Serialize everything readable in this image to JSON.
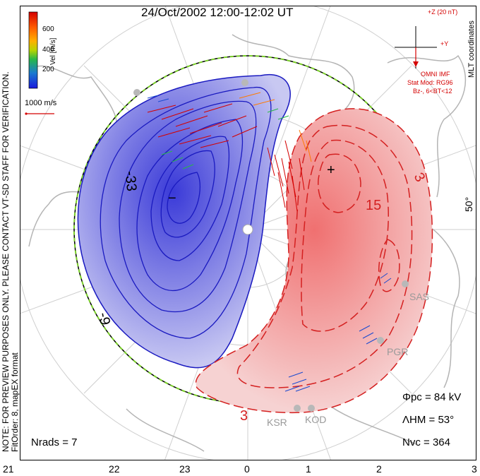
{
  "title": "24/Oct/2002 12:00-12:02 UT",
  "note_lines": [
    "NOTE: FOR PREVIEW PURPOSES ONLY. PLEASE CONTACT VT-SD STAFF FOR VERIFICATION.",
    "FitOrder: 8, mapEX format"
  ],
  "mlt_coordinates_label": "MLT coordinates",
  "latitude_label": "50°",
  "mlt_ticks": [
    "21",
    "22",
    "23",
    "0",
    "1",
    "2",
    "3"
  ],
  "velocity_colorbar": {
    "unit_label": "Vel [m/s]",
    "ticks": [
      "600",
      "400",
      "200"
    ],
    "colors": [
      "#d40000",
      "#ff5a00",
      "#ffb000",
      "#b8d400",
      "#28b848",
      "#1a7ad0",
      "#1a1adc"
    ]
  },
  "vector_scale_label": "1000 m/s",
  "imf": {
    "z_label": "+Z (20 nT)",
    "y_label": "+Y",
    "source_label": "OMNI IMF",
    "model_label": "Stat Mod: RG96",
    "condition_label": "Bz-, 6<BT<12",
    "color": "#d40000"
  },
  "contour_labels": {
    "negative": [
      "-33",
      "-9"
    ],
    "positive": [
      "3",
      "15",
      "3"
    ]
  },
  "markers": {
    "min": "−",
    "max": "+"
  },
  "radars": [
    "SAS",
    "PGR",
    "KSR",
    "KOD"
  ],
  "stats": {
    "phi_pc_label": "Φpc",
    "phi_pc_value": "= 84 kV",
    "lambda_hm_label": "ΛHM",
    "lambda_hm_value": "= 53°",
    "n_vc_label": "Nvc",
    "n_vc_value": "= 364",
    "n_rads_label": "Nrads",
    "n_rads_value": "= 7"
  },
  "colors": {
    "negative_cell": "#2d2dc8",
    "positive_cell": "#d42020",
    "land": "#b4b4b4",
    "hmb": "#7bd02a"
  }
}
